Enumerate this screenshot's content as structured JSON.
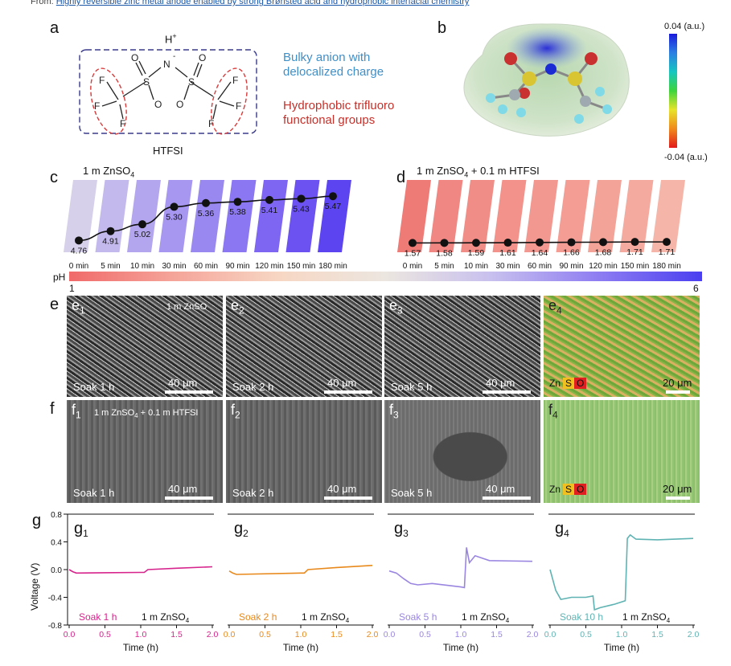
{
  "header": {
    "from_label": "From:",
    "link_text": "Highly reversible zinc metal anode enabled by strong Brønsted acid and hydrophobic interfacial chemistry"
  },
  "panel_a": {
    "label": "a",
    "h_plus": "H",
    "h_sup": "+",
    "n_minus": "-",
    "name": "HTFSI",
    "text_blue": [
      "Bulky anion with",
      "delocalized charge"
    ],
    "text_red": [
      "Hydrophobic trifluoro",
      "functional groups"
    ],
    "atoms": [
      "N",
      "S",
      "S",
      "O",
      "O",
      "O",
      "O",
      "F",
      "F",
      "F",
      "F",
      "F",
      "F"
    ]
  },
  "panel_b": {
    "label": "b",
    "scale_max": "0.04 (a.u.)",
    "scale_min": "-0.04 (a.u.)"
  },
  "panel_c": {
    "label": "c",
    "title_main": "1 m ZnSO",
    "title_sub": "4",
    "times": [
      "0 min",
      "5 min",
      "10 min",
      "30 min",
      "60 min",
      "90 min",
      "120 min",
      "150 min",
      "180 min"
    ],
    "ph_values": [
      4.76,
      4.91,
      5.02,
      5.3,
      5.36,
      5.38,
      5.41,
      5.43,
      5.47
    ],
    "ph_labels": [
      "4.76",
      "4.91",
      "5.02",
      "5.30",
      "5.36",
      "5.38",
      "5.41",
      "5.43",
      "5.47"
    ],
    "bar_colors": [
      "#d6d0ea",
      "#c3b9ec",
      "#b3a6ef",
      "#a797f0",
      "#9a88f1",
      "#8c77f2",
      "#7e66f2",
      "#6b52f1",
      "#5c45f0"
    ]
  },
  "panel_d": {
    "label": "d",
    "title_main": "1 m ZnSO",
    "title_sub": "4",
    "title_rest": " + 0.1 m HTFSI",
    "times": [
      "0 min",
      "5 min",
      "10 min",
      "30 min",
      "60 min",
      "90 min",
      "120 min",
      "150 min",
      "180 min"
    ],
    "ph_values": [
      1.57,
      1.58,
      1.59,
      1.61,
      1.64,
      1.66,
      1.68,
      1.71,
      1.71
    ],
    "ph_labels": [
      "1.57",
      "1.58",
      "1.59",
      "1.61",
      "1.64",
      "1.66",
      "1.68",
      "1.71",
      "1.71"
    ],
    "bar_colors": [
      "#ef7b76",
      "#f08782",
      "#f18d87",
      "#f2928b",
      "#f29890",
      "#f39d94",
      "#f3a398",
      "#f4aa9e",
      "#f5b5a8"
    ]
  },
  "ph_scale": {
    "label": "pH",
    "min": "1",
    "max": "6"
  },
  "panel_e": {
    "label": "e",
    "tiles": [
      {
        "sub": "1",
        "label": "e",
        "soak": "Soak 1 h",
        "scale": "40 μm",
        "note": "1 m ZnSO"
      },
      {
        "sub": "2",
        "label": "e",
        "soak": "Soak 2 h",
        "scale": "40 μm"
      },
      {
        "sub": "3",
        "label": "e",
        "soak": "Soak 5 h",
        "scale": "40 μm"
      },
      {
        "sub": "4",
        "label": "e",
        "scale": "20 μm"
      }
    ]
  },
  "panel_f": {
    "label": "f",
    "tiles": [
      {
        "sub": "1",
        "label": "f",
        "soak": "Soak 1 h",
        "scale": "40 μm",
        "note_main": "1 m ZnSO",
        "note_sub": "4",
        "note_rest": " + 0.1 m HTFSI"
      },
      {
        "sub": "2",
        "label": "f",
        "soak": "Soak 2 h",
        "scale": "40 μm"
      },
      {
        "sub": "3",
        "label": "f",
        "soak": "Soak 5 h",
        "scale": "40 μm"
      },
      {
        "sub": "4",
        "label": "f",
        "scale": "20 μm"
      }
    ]
  },
  "eds_legend": {
    "zn": "Zn",
    "s": "S",
    "o": "O"
  },
  "panel_g": {
    "label": "g",
    "ylabel": "Voltage (V)",
    "xlabel": "Time (h)",
    "yticks": [
      "0.8",
      "0.4",
      "0.0",
      "-0.4",
      "-0.8"
    ],
    "xticks": [
      "0.0",
      "0.5",
      "1.0",
      "1.5",
      "2.0"
    ],
    "electrolyte_main": "1 m ZnSO",
    "electrolyte_sub": "4",
    "subplots": [
      {
        "label": "g",
        "sub": "1",
        "soak": "Soak 1 h",
        "color": "#d6248c"
      },
      {
        "label": "g",
        "sub": "2",
        "soak": "Soak 2 h",
        "color": "#e8891c"
      },
      {
        "label": "g",
        "sub": "3",
        "soak": "Soak 5 h",
        "color": "#9a86e0"
      },
      {
        "label": "g",
        "sub": "4",
        "soak": "Soak 10 h",
        "color": "#5fb3b3"
      }
    ]
  },
  "chart_data": {
    "type": "line",
    "xlabel": "Time (h)",
    "ylabel": "Voltage (V)",
    "xlim": [
      0,
      2
    ],
    "ylim": [
      -0.8,
      0.8
    ],
    "series": [
      {
        "name": "Soak 1 h",
        "x": [
          0,
          0.05,
          0.1,
          1.0,
          1.05,
          1.1,
          1.5,
          2.0
        ],
        "y": [
          0.0,
          -0.03,
          -0.05,
          -0.04,
          -0.04,
          0.0,
          0.02,
          0.04
        ]
      },
      {
        "name": "Soak 2 h",
        "x": [
          0,
          0.05,
          0.1,
          1.0,
          1.05,
          1.1,
          1.5,
          2.0
        ],
        "y": [
          -0.02,
          -0.05,
          -0.07,
          -0.05,
          -0.05,
          0.0,
          0.03,
          0.06
        ]
      },
      {
        "name": "Soak 5 h",
        "x": [
          0,
          0.1,
          0.2,
          0.3,
          0.4,
          0.6,
          1.0,
          1.05,
          1.08,
          1.12,
          1.2,
          1.4,
          2.0
        ],
        "y": [
          -0.02,
          -0.05,
          -0.13,
          -0.2,
          -0.22,
          -0.2,
          -0.25,
          -0.26,
          0.32,
          0.1,
          0.2,
          0.13,
          0.12
        ]
      },
      {
        "name": "Soak 10 h",
        "x": [
          0,
          0.08,
          0.15,
          0.3,
          0.5,
          0.6,
          0.62,
          0.7,
          0.9,
          1.05,
          1.08,
          1.12,
          1.2,
          1.5,
          2.0
        ],
        "y": [
          0.0,
          -0.3,
          -0.43,
          -0.4,
          -0.4,
          -0.38,
          -0.58,
          -0.55,
          -0.5,
          -0.45,
          0.45,
          0.5,
          0.44,
          0.43,
          0.45
        ]
      }
    ]
  }
}
